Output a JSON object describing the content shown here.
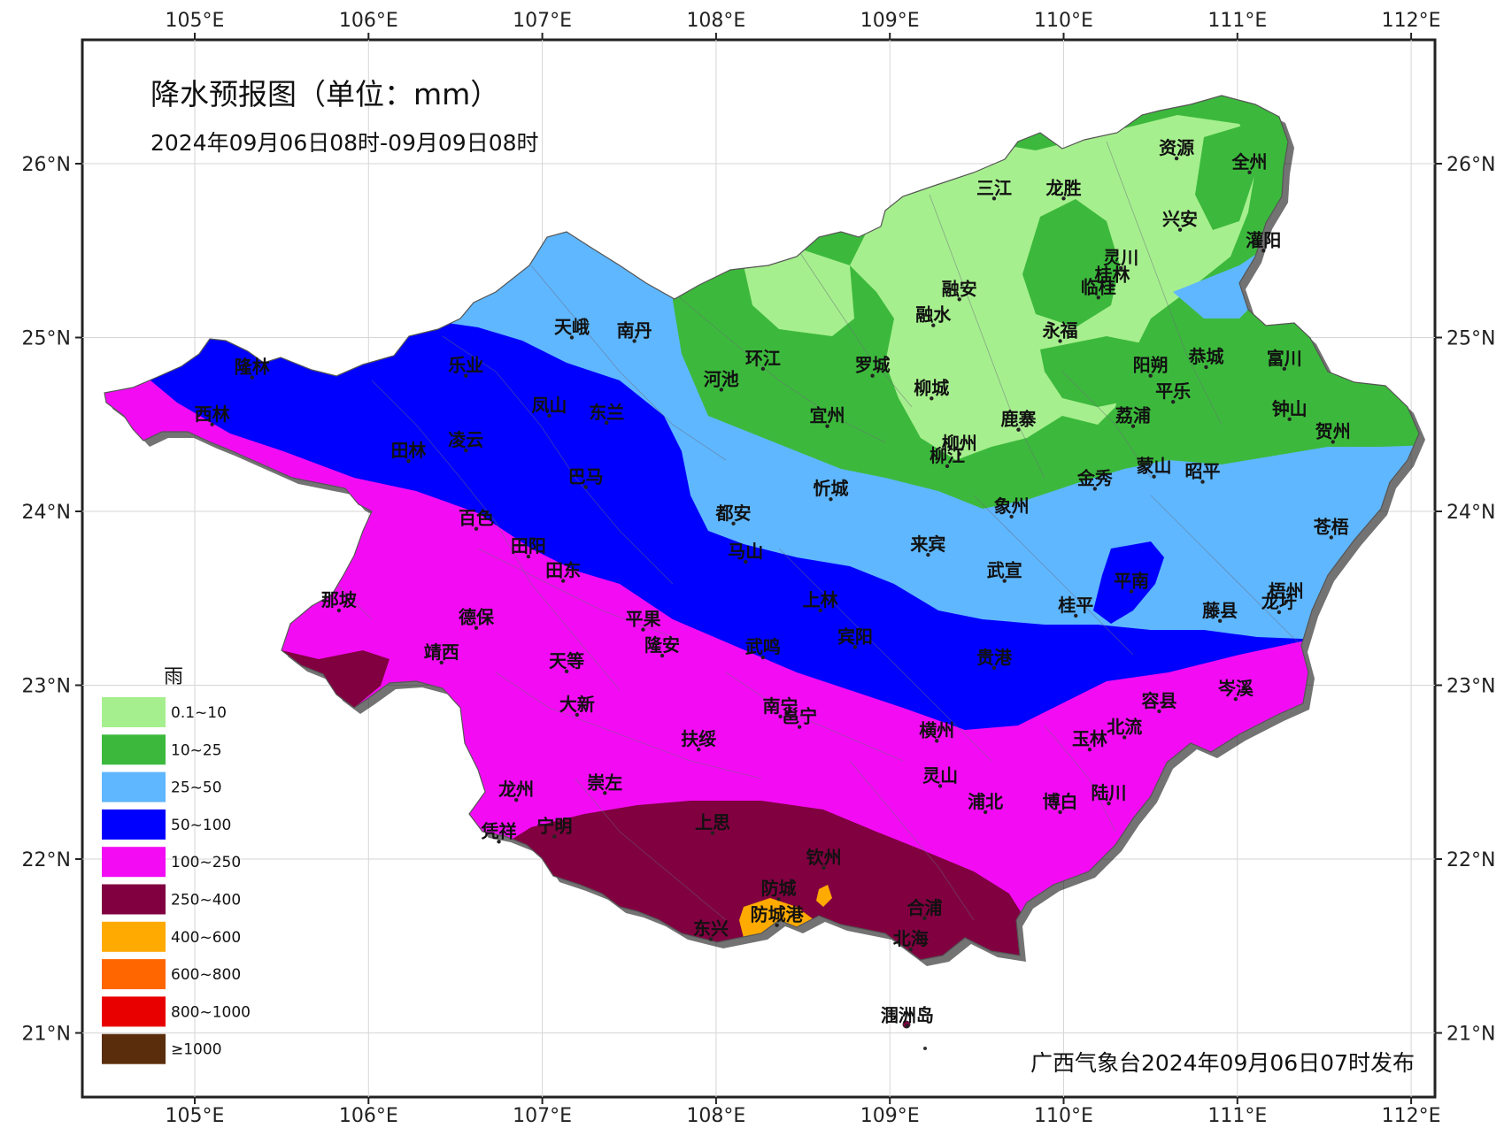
{
  "map": {
    "title": "降水预报图（单位：mm）",
    "subtitle": "2024年09月06日08时-09月09日08时",
    "issuer": "广西气象台2024年09月06日07时发布",
    "lon_ticks": [
      "105°E",
      "106°E",
      "107°E",
      "108°E",
      "109°E",
      "110°E",
      "111°E",
      "112°E"
    ],
    "lat_ticks": [
      "26°N",
      "25°N",
      "24°N",
      "23°N",
      "22°N",
      "21°N"
    ],
    "lon_range": [
      104.35,
      112.15
    ],
    "lat_range": [
      20.65,
      26.72
    ]
  },
  "legend": {
    "title": "雨",
    "items": [
      {
        "label": "0.1~10",
        "color": "#a6ef8e"
      },
      {
        "label": "10~25",
        "color": "#3cb93c"
      },
      {
        "label": "25~50",
        "color": "#5fb7ff"
      },
      {
        "label": "50~100",
        "color": "#0000ff"
      },
      {
        "label": "100~250",
        "color": "#f30cf3"
      },
      {
        "label": "250~400",
        "color": "#800040"
      },
      {
        "label": "400~600",
        "color": "#ffaa00"
      },
      {
        "label": "600~800",
        "color": "#ff6600"
      },
      {
        "label": "800~1000",
        "color": "#e80000"
      },
      {
        "label": "≥1000",
        "color": "#5a2d0c"
      }
    ]
  },
  "cities": [
    {
      "name": "资源",
      "lon": 110.65,
      "lat": 26.03
    },
    {
      "name": "全州",
      "lon": 111.07,
      "lat": 25.95
    },
    {
      "name": "三江",
      "lon": 109.6,
      "lat": 25.8
    },
    {
      "name": "龙胜",
      "lon": 110.0,
      "lat": 25.8
    },
    {
      "name": "兴安",
      "lon": 110.67,
      "lat": 25.62
    },
    {
      "name": "灌阳",
      "lon": 111.15,
      "lat": 25.5
    },
    {
      "name": "灵川",
      "lon": 110.33,
      "lat": 25.4
    },
    {
      "name": "桂林",
      "lon": 110.28,
      "lat": 25.3
    },
    {
      "name": "临桂",
      "lon": 110.2,
      "lat": 25.23
    },
    {
      "name": "融安",
      "lon": 109.4,
      "lat": 25.22
    },
    {
      "name": "融水",
      "lon": 109.25,
      "lat": 25.07
    },
    {
      "name": "永福",
      "lon": 109.98,
      "lat": 24.98
    },
    {
      "name": "天峨",
      "lon": 107.17,
      "lat": 25.0
    },
    {
      "name": "南丹",
      "lon": 107.53,
      "lat": 24.98
    },
    {
      "name": "环江",
      "lon": 108.27,
      "lat": 24.82
    },
    {
      "name": "罗城",
      "lon": 108.9,
      "lat": 24.78
    },
    {
      "name": "河池",
      "lon": 108.03,
      "lat": 24.7
    },
    {
      "name": "阳朔",
      "lon": 110.5,
      "lat": 24.78
    },
    {
      "name": "恭城",
      "lon": 110.82,
      "lat": 24.83
    },
    {
      "name": "富川",
      "lon": 111.27,
      "lat": 24.82
    },
    {
      "name": "平乐",
      "lon": 110.63,
      "lat": 24.63
    },
    {
      "name": "柳城",
      "lon": 109.24,
      "lat": 24.65
    },
    {
      "name": "乐业",
      "lon": 106.56,
      "lat": 24.78
    },
    {
      "name": "隆林",
      "lon": 105.33,
      "lat": 24.77
    },
    {
      "name": "西林",
      "lon": 105.1,
      "lat": 24.5
    },
    {
      "name": "凤山",
      "lon": 107.04,
      "lat": 24.55
    },
    {
      "name": "东兰",
      "lon": 107.37,
      "lat": 24.51
    },
    {
      "name": "宜州",
      "lon": 108.64,
      "lat": 24.49
    },
    {
      "name": "鹿寨",
      "lon": 109.74,
      "lat": 24.47
    },
    {
      "name": "荔浦",
      "lon": 110.4,
      "lat": 24.49
    },
    {
      "name": "钟山",
      "lon": 111.3,
      "lat": 24.53
    },
    {
      "name": "贺州",
      "lon": 111.55,
      "lat": 24.4
    },
    {
      "name": "柳州",
      "lon": 109.4,
      "lat": 24.33
    },
    {
      "name": "柳江",
      "lon": 109.33,
      "lat": 24.26
    },
    {
      "name": "凌云",
      "lon": 106.56,
      "lat": 24.35
    },
    {
      "name": "田林",
      "lon": 106.23,
      "lat": 24.29
    },
    {
      "name": "巴马",
      "lon": 107.25,
      "lat": 24.14
    },
    {
      "name": "金秀",
      "lon": 110.18,
      "lat": 24.13
    },
    {
      "name": "蒙山",
      "lon": 110.52,
      "lat": 24.2
    },
    {
      "name": "昭平",
      "lon": 110.8,
      "lat": 24.17
    },
    {
      "name": "忻城",
      "lon": 108.66,
      "lat": 24.07
    },
    {
      "name": "象州",
      "lon": 109.7,
      "lat": 23.97
    },
    {
      "name": "都安",
      "lon": 108.1,
      "lat": 23.93
    },
    {
      "name": "百色",
      "lon": 106.62,
      "lat": 23.9
    },
    {
      "name": "苍梧",
      "lon": 111.54,
      "lat": 23.85
    },
    {
      "name": "马山",
      "lon": 108.17,
      "lat": 23.71
    },
    {
      "name": "田阳",
      "lon": 106.92,
      "lat": 23.74
    },
    {
      "name": "来宾",
      "lon": 109.22,
      "lat": 23.75
    },
    {
      "name": "田东",
      "lon": 107.12,
      "lat": 23.6
    },
    {
      "name": "武宣",
      "lon": 109.66,
      "lat": 23.6
    },
    {
      "name": "平南",
      "lon": 110.39,
      "lat": 23.54
    },
    {
      "name": "梧州",
      "lon": 111.28,
      "lat": 23.48
    },
    {
      "name": "龙圩",
      "lon": 111.24,
      "lat": 23.42
    },
    {
      "name": "那坡",
      "lon": 105.83,
      "lat": 23.43
    },
    {
      "name": "上林",
      "lon": 108.6,
      "lat": 23.43
    },
    {
      "name": "桂平",
      "lon": 110.07,
      "lat": 23.4
    },
    {
      "name": "藤县",
      "lon": 110.9,
      "lat": 23.37
    },
    {
      "name": "德保",
      "lon": 106.62,
      "lat": 23.33
    },
    {
      "name": "平果",
      "lon": 107.58,
      "lat": 23.32
    },
    {
      "name": "宾阳",
      "lon": 108.8,
      "lat": 23.22
    },
    {
      "name": "靖西",
      "lon": 106.42,
      "lat": 23.13
    },
    {
      "name": "隆安",
      "lon": 107.69,
      "lat": 23.17
    },
    {
      "name": "天等",
      "lon": 107.14,
      "lat": 23.08
    },
    {
      "name": "武鸣",
      "lon": 108.27,
      "lat": 23.16
    },
    {
      "name": "贵港",
      "lon": 109.6,
      "lat": 23.1
    },
    {
      "name": "岑溪",
      "lon": 110.99,
      "lat": 22.92
    },
    {
      "name": "大新",
      "lon": 107.2,
      "lat": 22.83
    },
    {
      "name": "南宁",
      "lon": 108.37,
      "lat": 22.82
    },
    {
      "name": "容县",
      "lon": 110.55,
      "lat": 22.85
    },
    {
      "name": "邕宁",
      "lon": 108.48,
      "lat": 22.76
    },
    {
      "name": "横州",
      "lon": 109.27,
      "lat": 22.68
    },
    {
      "name": "玉林",
      "lon": 110.15,
      "lat": 22.63
    },
    {
      "name": "北流",
      "lon": 110.35,
      "lat": 22.7
    },
    {
      "name": "扶绥",
      "lon": 107.9,
      "lat": 22.63
    },
    {
      "name": "灵山",
      "lon": 109.29,
      "lat": 22.42
    },
    {
      "name": "崇左",
      "lon": 107.36,
      "lat": 22.38
    },
    {
      "name": "龙州",
      "lon": 106.85,
      "lat": 22.34
    },
    {
      "name": "浦北",
      "lon": 109.55,
      "lat": 22.27
    },
    {
      "name": "博白",
      "lon": 109.98,
      "lat": 22.27
    },
    {
      "name": "陆川",
      "lon": 110.26,
      "lat": 22.32
    },
    {
      "name": "宁明",
      "lon": 107.07,
      "lat": 22.13
    },
    {
      "name": "凭祥",
      "lon": 106.75,
      "lat": 22.1
    },
    {
      "name": "上思",
      "lon": 107.98,
      "lat": 22.15
    },
    {
      "name": "钦州",
      "lon": 108.62,
      "lat": 21.95
    },
    {
      "name": "防城",
      "lon": 108.36,
      "lat": 21.77
    },
    {
      "name": "合浦",
      "lon": 109.2,
      "lat": 21.66
    },
    {
      "name": "防城港",
      "lon": 108.35,
      "lat": 21.62
    },
    {
      "name": "东兴",
      "lon": 107.97,
      "lat": 21.54
    },
    {
      "name": "北海",
      "lon": 109.12,
      "lat": 21.48
    },
    {
      "name": "涠洲岛",
      "lon": 109.1,
      "lat": 21.04
    }
  ]
}
